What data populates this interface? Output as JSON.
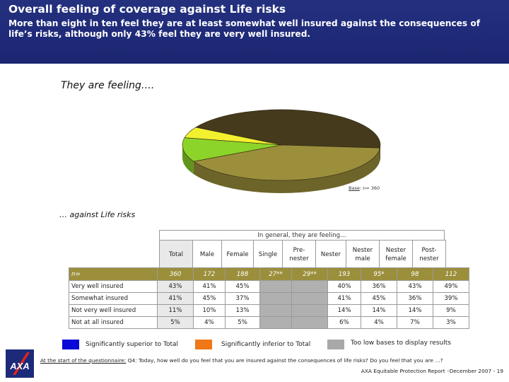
{
  "header": {
    "title": "Overall feeling of coverage against Life risks",
    "subtitle": "More than eight in ten feel they are at least somewhat well insured against the consequences of life’s risks, although only 43% feel they are very well insured."
  },
  "section1": "They are feeling….",
  "section2": "… against Life risks",
  "base_note": {
    "prefix": "Base",
    "text": ": n= 360"
  },
  "chart_data": {
    "type": "pie",
    "categories": [
      "Very well insured",
      "Somewhat insured",
      "Not very well insured",
      "Not at all insured"
    ],
    "values": [
      43,
      41,
      11,
      5
    ],
    "labels": [
      {
        "name": "Very well insured",
        "pct": "43%"
      },
      {
        "name": "Somewhat insured",
        "pct": "41%"
      },
      {
        "name": "Not very well insured",
        "pct": "11%"
      },
      {
        "name": "Not at all insured",
        "pct": "5%"
      }
    ],
    "colors": [
      "#453a1c",
      "#9c8f3c",
      "#8cd42a",
      "#f3f02f"
    ]
  },
  "table": {
    "group_header": "In general, they are feeling…",
    "columns": [
      "Total",
      "Male",
      "Female",
      "Single",
      "Pre-\nnester",
      "Nester",
      "Nester\nmale",
      "Nester\nfemale",
      "Post-\nnester"
    ],
    "rows": [
      {
        "label": "n=",
        "values": [
          "360",
          "172",
          "188",
          "27**",
          "29**",
          "193",
          "95*",
          "98",
          "112"
        ]
      },
      {
        "label": "Very well insured",
        "values": [
          "43%",
          "41%",
          "45%",
          "",
          "",
          "40%",
          "36%",
          "43%",
          "49%"
        ]
      },
      {
        "label": "Somewhat insured",
        "values": [
          "41%",
          "45%",
          "37%",
          "",
          "",
          "41%",
          "45%",
          "36%",
          "39%"
        ]
      },
      {
        "label": "Not very well insured",
        "values": [
          "11%",
          "10%",
          "13%",
          "",
          "",
          "14%",
          "14%",
          "14%",
          "9%"
        ]
      },
      {
        "label": "Not at all insured",
        "values": [
          "5%",
          "4%",
          "5%",
          "",
          "",
          "6%",
          "4%",
          "7%",
          "3%"
        ]
      }
    ]
  },
  "legend": {
    "superior": {
      "label": "Significantly superior to Total",
      "color": "#0a0ad8"
    },
    "inferior": {
      "label": "Significantly inferior to Total",
      "color": "#f07818"
    },
    "low_base": {
      "label": "Too low bases to display results",
      "color": "#a8a8a8"
    }
  },
  "footer": {
    "question_prefix": "At the start of the questionnaire:",
    "question": " Q4: Today, how well do you feel that you are insured against the consequences of life risks? Do you feel that you are …?",
    "source": "AXA Equitable Protection Report –December  2007 - 19"
  },
  "logo": {
    "text": "AXA"
  }
}
